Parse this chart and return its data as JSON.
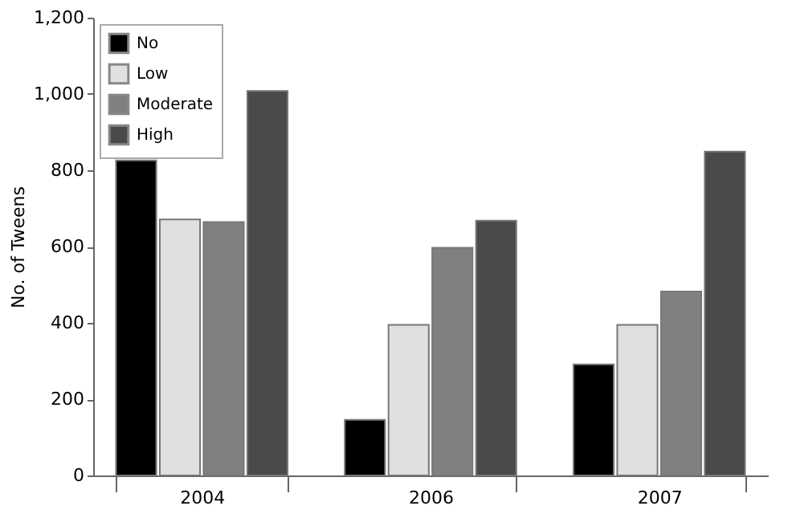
{
  "chart_data": {
    "type": "bar",
    "ylabel": "No. of Tweens",
    "categories": [
      "2004",
      "2006",
      "2007"
    ],
    "series": [
      {
        "name": "No",
        "color": "#000000",
        "values": [
          826,
          146,
          291
        ]
      },
      {
        "name": "Low",
        "color": "#e0e0e0",
        "values": [
          671,
          395,
          395
        ]
      },
      {
        "name": "Moderate",
        "color": "#808080",
        "values": [
          664,
          597,
          482
        ]
      },
      {
        "name": "High",
        "color": "#4a4a4a",
        "values": [
          1008,
          668,
          849
        ]
      }
    ],
    "ylim": [
      0,
      1200
    ],
    "yticks": [
      0,
      200,
      400,
      600,
      800,
      {
        "value": 1000,
        "label": "1,000"
      },
      {
        "value": 1200,
        "label": "1,200"
      }
    ],
    "grid": false,
    "legend": "top left"
  }
}
